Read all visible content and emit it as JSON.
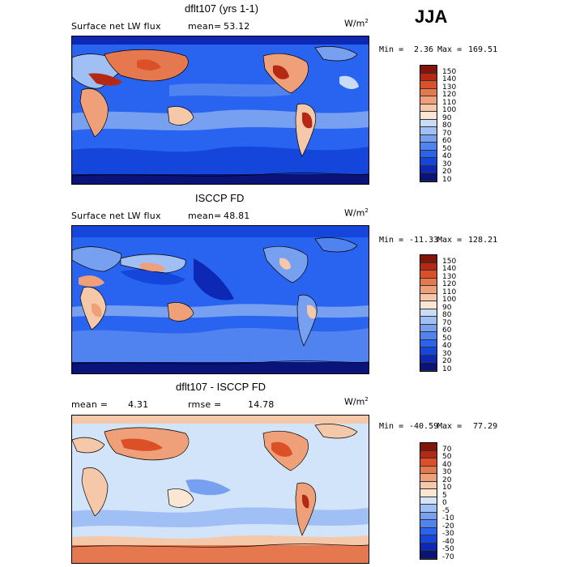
{
  "season": "JJA",
  "colors": {
    "land_outline": "#000000",
    "panel1_palette": [
      "#0a1478",
      "#0c28b4",
      "#1446dc",
      "#2864f0",
      "#5082f0",
      "#78a0f0",
      "#a0c0f5",
      "#c8dcf8",
      "#fae6d2",
      "#f5c8aa",
      "#f0a078",
      "#e67850",
      "#dc5028",
      "#b42814",
      "#821408"
    ],
    "panel3_palette": [
      "#0a1478",
      "#0c28b4",
      "#1446dc",
      "#2864f0",
      "#5082f0",
      "#78a0f0",
      "#a0c0f5",
      "#d2e4fa",
      "#fae6d2",
      "#f5c8aa",
      "#f0a078",
      "#e67850",
      "#dc5028",
      "#b42814",
      "#821408"
    ]
  },
  "panels": [
    {
      "title": "dflt107 (yrs 1-1)",
      "left_label": "Surface net LW flux",
      "stat_label": "mean=",
      "stat_value": "53.12",
      "stat2_label": "",
      "stat2_value": "",
      "units": "W/m",
      "units_sup": "2",
      "min_label": "Min =",
      "min_value": "2.36",
      "max_label": "Max =",
      "max_value": "169.51",
      "colorbar_ticks": [
        "150",
        "140",
        "130",
        "120",
        "110",
        "100",
        "90",
        "80",
        "70",
        "60",
        "50",
        "40",
        "30",
        "20",
        "10"
      ]
    },
    {
      "title": "ISCCP FD",
      "left_label": "Surface net LW flux",
      "stat_label": "mean=",
      "stat_value": "48.81",
      "stat2_label": "",
      "stat2_value": "",
      "units": "W/m",
      "units_sup": "2",
      "min_label": "Min =",
      "min_value": "-11.33",
      "max_label": "Max =",
      "max_value": "128.21",
      "colorbar_ticks": [
        "150",
        "140",
        "130",
        "120",
        "110",
        "100",
        "90",
        "80",
        "70",
        "60",
        "50",
        "40",
        "30",
        "20",
        "10"
      ]
    },
    {
      "title": "dflt107 - ISCCP FD",
      "left_label": "",
      "stat_label": "mean =",
      "stat_value": "4.31",
      "stat2_label": "rmse =",
      "stat2_value": "14.78",
      "units": "W/m",
      "units_sup": "2",
      "min_label": "Min =",
      "min_value": "-40.59",
      "max_label": "Max =",
      "max_value": "77.29",
      "colorbar_ticks": [
        "70",
        "50",
        "40",
        "30",
        "20",
        "10",
        "5",
        "0",
        "-5",
        "-10",
        "-20",
        "-30",
        "-40",
        "-50",
        "-70"
      ]
    }
  ],
  "chart_data": [
    {
      "type": "heatmap",
      "title": "dflt107 (yrs 1-1)",
      "variable": "Surface net LW flux",
      "units": "W/m2",
      "mean": 53.12,
      "min": 2.36,
      "max": 169.51,
      "levels": [
        10,
        20,
        30,
        40,
        50,
        60,
        70,
        80,
        90,
        100,
        110,
        120,
        130,
        140,
        150
      ]
    },
    {
      "type": "heatmap",
      "title": "ISCCP FD",
      "variable": "Surface net LW flux",
      "units": "W/m2",
      "mean": 48.81,
      "min": -11.33,
      "max": 128.21,
      "levels": [
        10,
        20,
        30,
        40,
        50,
        60,
        70,
        80,
        90,
        100,
        110,
        120,
        130,
        140,
        150
      ]
    },
    {
      "type": "heatmap",
      "title": "dflt107 - ISCCP FD",
      "units": "W/m2",
      "mean": 4.31,
      "rmse": 14.78,
      "min": -40.59,
      "max": 77.29,
      "levels": [
        -70,
        -50,
        -40,
        -30,
        -20,
        -10,
        -5,
        0,
        5,
        10,
        20,
        30,
        40,
        50,
        70
      ]
    }
  ]
}
